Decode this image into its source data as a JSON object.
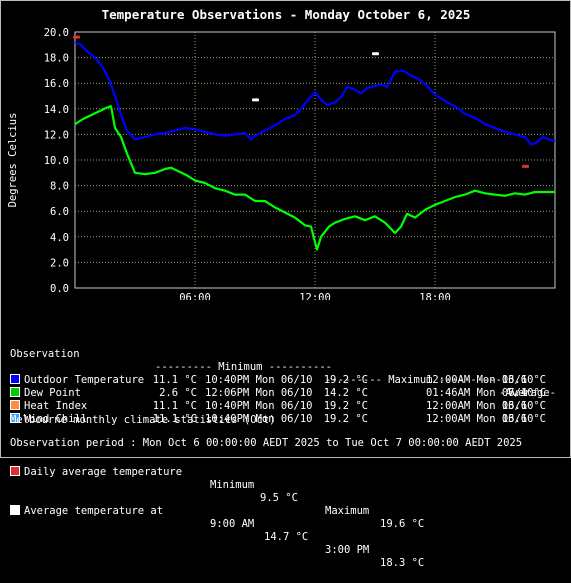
{
  "chart_data": {
    "type": "line",
    "title": "Temperature Observations - Monday October 6, 2025",
    "ylabel": "Degrees Celcius",
    "xlabel": "",
    "ylim": [
      0,
      20
    ],
    "yticks": [
      "0.0",
      "2.0",
      "4.0",
      "6.0",
      "8.0",
      "10.0",
      "12.0",
      "14.0",
      "16.0",
      "18.0",
      "20.0"
    ],
    "xlim_hours": [
      0,
      24
    ],
    "xticks": [
      {
        "h": 6,
        "label": "06:00"
      },
      {
        "h": 12,
        "label": "12:00"
      },
      {
        "h": 18,
        "label": "18:00"
      }
    ],
    "grid": true,
    "series": [
      {
        "name": "Outdoor Temperature",
        "color": "#0000ff",
        "x": [
          0,
          0.3,
          0.6,
          1,
          1.4,
          1.7,
          2,
          2.3,
          2.6,
          3,
          3.5,
          4,
          4.5,
          5,
          5.5,
          6,
          6.5,
          7,
          7.5,
          8,
          8.5,
          8.8,
          9,
          9.5,
          10,
          10.5,
          11,
          11.3,
          11.6,
          12,
          12.3,
          12.6,
          13,
          13.3,
          13.6,
          14,
          14.3,
          14.6,
          15,
          15.3,
          15.6,
          16,
          16.4,
          16.8,
          17.2,
          17.6,
          18,
          18.5,
          19,
          19.5,
          20,
          20.5,
          21,
          21.5,
          22,
          22.5,
          22.8,
          23,
          23.4,
          23.7,
          24
        ],
        "y": [
          19.2,
          19,
          18.5,
          18,
          17.2,
          16.3,
          15,
          13.5,
          12.3,
          11.6,
          11.8,
          12,
          12.1,
          12.3,
          12.5,
          12.4,
          12.2,
          12,
          11.9,
          12,
          12.1,
          11.6,
          11.9,
          12.3,
          12.7,
          13.2,
          13.5,
          14,
          14.6,
          15.3,
          14.7,
          14.3,
          14.5,
          14.9,
          15.7,
          15.5,
          15.2,
          15.6,
          15.8,
          15.9,
          15.7,
          16.9,
          17,
          16.6,
          16.3,
          15.8,
          15.1,
          14.6,
          14.2,
          13.6,
          13.3,
          12.8,
          12.5,
          12.2,
          12,
          11.8,
          11.2,
          11.3,
          11.8,
          11.6,
          11.5
        ]
      },
      {
        "name": "Dew Point",
        "color": "#00ff00",
        "x": [
          0,
          0.4,
          0.8,
          1.2,
          1.6,
          1.8,
          2,
          2.3,
          2.6,
          3,
          3.5,
          4,
          4.5,
          4.8,
          5.2,
          5.6,
          6,
          6.5,
          7,
          7.5,
          8,
          8.5,
          9,
          9.5,
          10,
          10.5,
          11,
          11.5,
          11.8,
          12,
          12.1,
          12.3,
          12.7,
          13,
          13.5,
          14,
          14.5,
          15,
          15.5,
          16,
          16.3,
          16.6,
          17,
          17.5,
          18,
          18.5,
          19,
          19.5,
          20,
          20.5,
          21,
          21.5,
          22,
          22.5,
          23,
          23.5,
          24
        ],
        "y": [
          12.8,
          13.2,
          13.5,
          13.8,
          14.1,
          14.2,
          12.5,
          11.8,
          10.5,
          9,
          8.9,
          9,
          9.3,
          9.4,
          9.1,
          8.8,
          8.4,
          8.2,
          7.8,
          7.6,
          7.3,
          7.3,
          6.8,
          6.8,
          6.3,
          5.9,
          5.5,
          4.9,
          4.8,
          3.6,
          3,
          4,
          4.8,
          5.1,
          5.4,
          5.6,
          5.3,
          5.6,
          5.1,
          4.3,
          4.8,
          5.8,
          5.5,
          6.1,
          6.5,
          6.8,
          7.1,
          7.3,
          7.6,
          7.4,
          7.3,
          7.2,
          7.4,
          7.3,
          7.5,
          7.5,
          7.5
        ]
      }
    ],
    "markers": [
      {
        "h": 0.05,
        "y": 19.6,
        "color": "#e03030"
      },
      {
        "h": 9,
        "y": 14.7,
        "color": "#ffffff"
      },
      {
        "h": 15,
        "y": 18.3,
        "color": "#ffffff"
      },
      {
        "h": 22.5,
        "y": 9.5,
        "color": "#e03030"
      }
    ]
  },
  "legend": {
    "header": {
      "observation": "Observation",
      "minimum": "--------- Minimum ----------",
      "maximum": "--------- Maximum ----------",
      "average": "-Average-"
    },
    "rows": [
      {
        "label": "Outdoor Temperature",
        "color": "#0000ff",
        "min": "11.1 °C",
        "min_time": "10:40PM Mon 06/10",
        "max": "19.2 °C",
        "max_time": "12:00AM Mon 06/10",
        "avg": "13.6 °C"
      },
      {
        "label": "Dew Point",
        "color": "#00cc00",
        "min": "2.6 °C",
        "min_time": "12:06PM Mon 06/10",
        "max": "14.2 °C",
        "max_time": "01:46AM Mon 06/10",
        "avg": "7.4 °C"
      },
      {
        "label": "Heat Index",
        "color": "#ff8c40",
        "min": "11.1 °C",
        "min_time": "10:40PM Mon 06/10",
        "max": "19.2 °C",
        "max_time": "12:00AM Mon 06/10",
        "avg": "13.6 °C"
      },
      {
        "label": "Wind Chill",
        "color": "#40a0ff",
        "min": "11.1 °C",
        "min_time": "10:40PM Mon 06/10",
        "max": "19.2 °C",
        "max_time": "12:00AM Mon 06/10",
        "avg": "13.6 °C"
      }
    ]
  },
  "climate": {
    "heading": "Melbourne monthly climate statistics (Oct)",
    "daily": {
      "label": "Daily average temperature",
      "color": "#e03030",
      "min_label": "Minimum",
      "min": "9.5 °C",
      "max_label": "Maximum",
      "max": "19.6 °C"
    },
    "average": {
      "label": "Average temperature at",
      "color": "#ffffff",
      "t1": "9:00 AM",
      "v1": "14.7 °C",
      "t2": "3:00 PM",
      "v2": "18.3 °C"
    }
  },
  "period": "Observation period : Mon Oct 6 00:00:00 AEDT 2025 to Tue Oct 7 00:00:00 AEDT 2025"
}
